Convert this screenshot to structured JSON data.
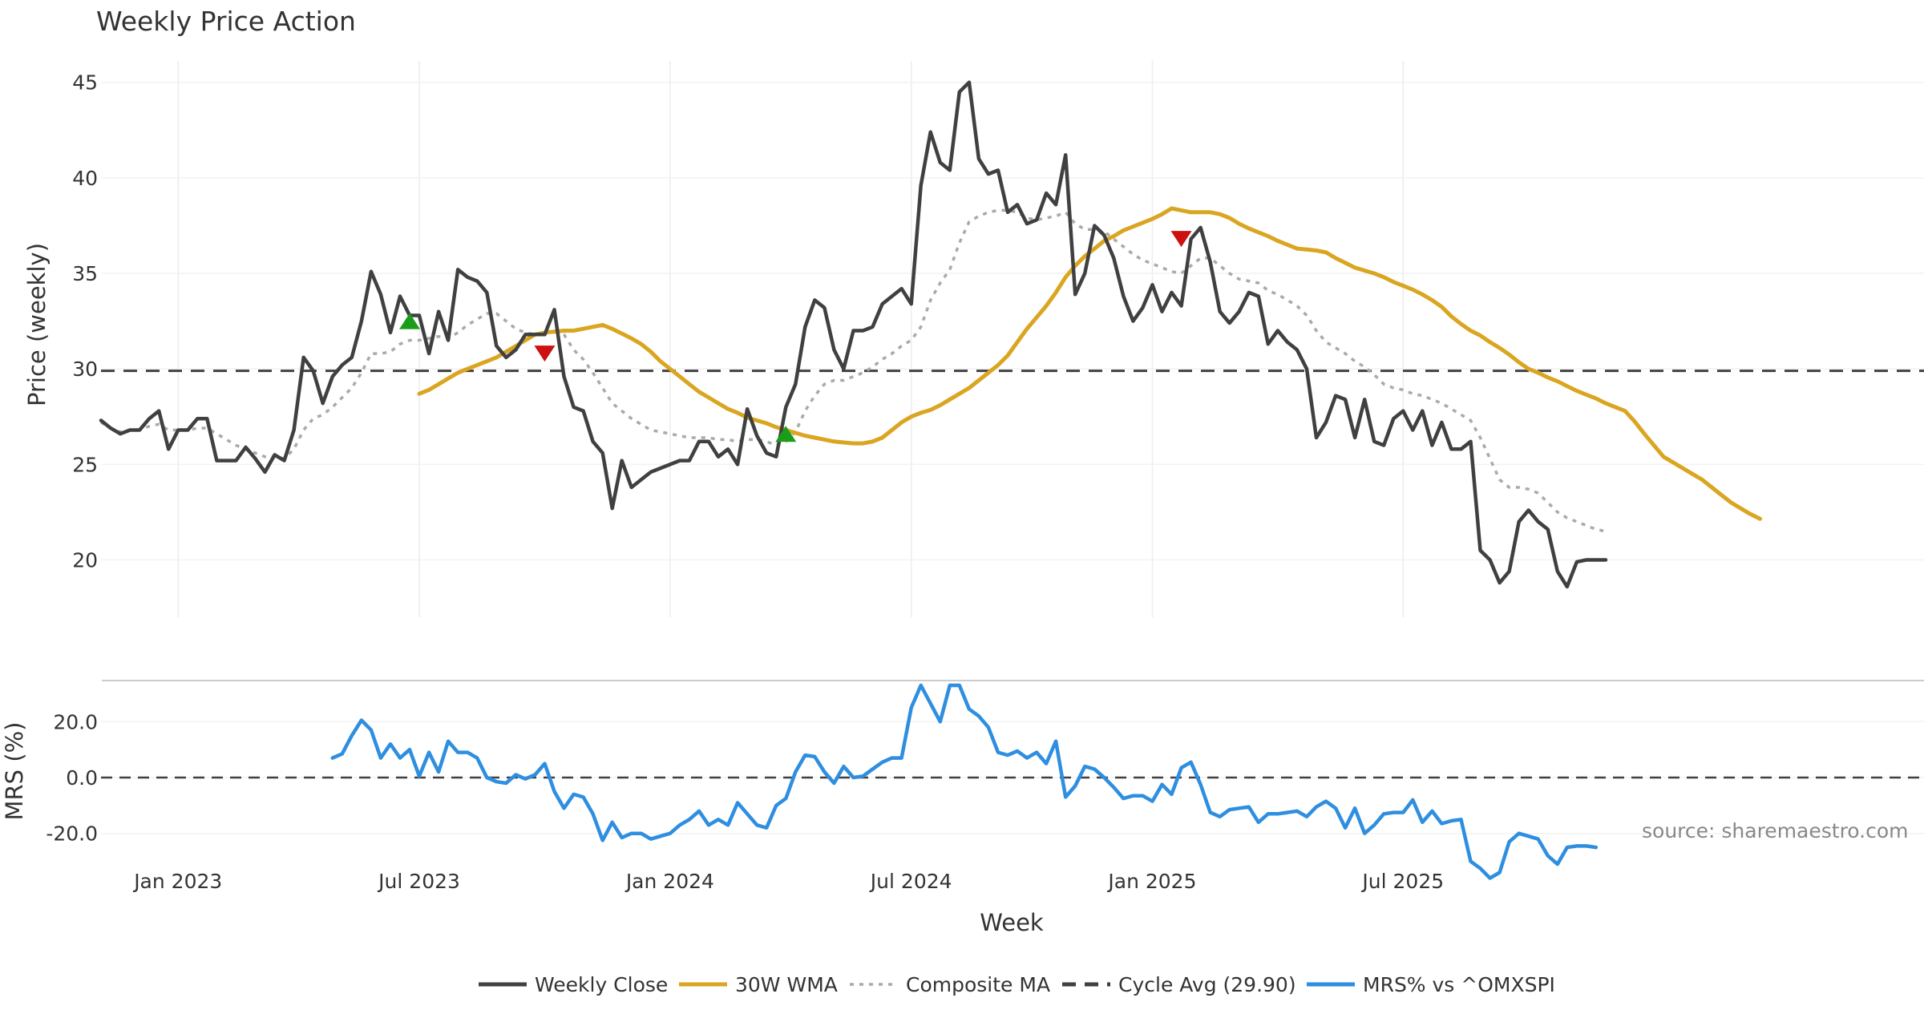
{
  "chart_data": [
    {
      "type": "line",
      "title": "Weekly Price Action",
      "ylabel": "Price (weekly)",
      "ylim": [
        17,
        46.5
      ],
      "yticks": [
        20,
        25,
        30,
        35,
        40,
        45
      ],
      "grid": true,
      "cycle_avg": 29.9,
      "x_week_index_range": [
        0,
        189
      ],
      "series": [
        {
          "name": "Weekly Close",
          "color": "#404040",
          "style": "solid",
          "start": 0,
          "values": [
            27.3,
            26.9,
            26.6,
            26.8,
            26.8,
            27.4,
            27.8,
            25.8,
            26.8,
            26.8,
            27.4,
            27.4,
            25.2,
            25.2,
            25.2,
            25.9,
            25.3,
            24.6,
            25.5,
            25.2,
            26.8,
            30.6,
            29.9,
            28.2,
            29.6,
            30.2,
            30.6,
            32.5,
            35.1,
            33.9,
            31.9,
            33.8,
            32.8,
            32.8,
            30.8,
            33.0,
            31.5,
            35.2,
            34.8,
            34.6,
            34.0,
            31.2,
            30.6,
            31.0,
            31.8,
            31.8,
            31.8,
            33.1,
            29.6,
            28.0,
            27.8,
            26.2,
            25.6,
            22.7,
            25.2,
            23.8,
            24.2,
            24.6,
            24.8,
            25.0,
            25.2,
            25.2,
            26.2,
            26.2,
            25.4,
            25.8,
            25.0,
            27.9,
            26.5,
            25.6,
            25.4,
            28.0,
            29.2,
            32.2,
            33.6,
            33.2,
            31.0,
            30.0,
            32.0,
            32.0,
            32.2,
            33.4,
            33.8,
            34.2,
            33.4,
            39.6,
            42.4,
            40.8,
            40.4,
            44.5,
            45.0,
            41.0,
            40.2,
            40.4,
            38.2,
            38.6,
            37.6,
            37.8,
            39.2,
            38.6,
            41.2,
            33.9,
            35.0,
            37.5,
            37.0,
            35.8,
            33.8,
            32.5,
            33.2,
            34.4,
            33.0,
            34.0,
            33.3,
            36.8,
            37.4,
            35.6,
            33.0,
            32.4,
            33.0,
            34.0,
            33.8,
            31.3,
            32.0,
            31.4,
            31.0,
            30.0,
            26.4,
            27.2,
            28.6,
            28.4,
            26.4,
            28.4,
            26.2,
            26.0,
            27.4,
            27.8,
            26.8,
            27.8,
            26.0,
            27.2,
            25.8,
            25.8,
            26.2,
            20.5,
            20.0,
            18.8,
            19.4,
            22.0,
            22.6,
            22.0,
            21.6,
            19.4,
            18.6,
            19.9,
            20.0,
            20.0,
            20.0
          ]
        },
        {
          "name": "30W WMA",
          "color": "#daa520",
          "style": "solid",
          "start": 33,
          "values": [
            28.7,
            28.9,
            29.2,
            29.5,
            29.8,
            30.0,
            30.2,
            30.4,
            30.6,
            30.9,
            31.2,
            31.5,
            31.8,
            31.9,
            31.95,
            32.0,
            32.0,
            32.1,
            32.2,
            32.3,
            32.1,
            31.85,
            31.6,
            31.3,
            30.9,
            30.4,
            30.0,
            29.6,
            29.2,
            28.8,
            28.5,
            28.2,
            27.9,
            27.7,
            27.45,
            27.3,
            27.15,
            26.95,
            26.8,
            26.65,
            26.5,
            26.4,
            26.3,
            26.2,
            26.15,
            26.1,
            26.1,
            26.2,
            26.4,
            26.8,
            27.2,
            27.5,
            27.7,
            27.85,
            28.1,
            28.4,
            28.7,
            29.0,
            29.4,
            29.8,
            30.2,
            30.7,
            31.4,
            32.1,
            32.7,
            33.3,
            34.0,
            34.8,
            35.4,
            35.9,
            36.3,
            36.7,
            36.95,
            37.25,
            37.45,
            37.65,
            37.85,
            38.1,
            38.4,
            38.3,
            38.2,
            38.2,
            38.2,
            38.1,
            37.9,
            37.6,
            37.35,
            37.15,
            36.95,
            36.7,
            36.5,
            36.3,
            36.25,
            36.2,
            36.1,
            35.8,
            35.55,
            35.3,
            35.15,
            35.0,
            34.8,
            34.55,
            34.35,
            34.15,
            33.9,
            33.6,
            33.25,
            32.75,
            32.35,
            32.0,
            31.75,
            31.4,
            31.1,
            30.75,
            30.35,
            30.0,
            29.8,
            29.55,
            29.35,
            29.1,
            28.85,
            28.65,
            28.45,
            28.2,
            28.0,
            27.8,
            27.25,
            26.6,
            26.0,
            25.4,
            25.1,
            24.8,
            24.5,
            24.2,
            23.8,
            23.4,
            23.0,
            22.7,
            22.4,
            22.15
          ]
        },
        {
          "name": "Composite MA",
          "color": "#aaaaaa",
          "style": "dotted",
          "start": 0,
          "values": [
            27.2,
            26.9,
            26.7,
            26.8,
            26.8,
            27.0,
            27.1,
            26.8,
            26.8,
            26.8,
            26.9,
            26.9,
            26.6,
            26.3,
            26.0,
            25.8,
            25.6,
            25.4,
            25.4,
            25.3,
            25.8,
            26.8,
            27.4,
            27.6,
            28.0,
            28.5,
            29.0,
            29.8,
            30.8,
            30.8,
            30.9,
            31.3,
            31.5,
            31.5,
            31.6,
            31.7,
            31.6,
            31.9,
            32.3,
            32.6,
            32.9,
            32.9,
            32.5,
            32.1,
            31.9,
            31.8,
            31.8,
            32.1,
            31.8,
            31.0,
            30.5,
            29.8,
            29.0,
            28.2,
            27.8,
            27.4,
            27.1,
            26.8,
            26.7,
            26.6,
            26.5,
            26.4,
            26.4,
            26.4,
            26.3,
            26.3,
            26.2,
            26.3,
            26.3,
            26.2,
            26.0,
            26.2,
            26.7,
            27.8,
            28.6,
            29.2,
            29.4,
            29.4,
            29.6,
            29.8,
            30.1,
            30.5,
            30.8,
            31.2,
            31.5,
            32.2,
            33.6,
            34.5,
            35.2,
            36.6,
            37.7,
            38.0,
            38.2,
            38.3,
            38.3,
            38.2,
            37.9,
            37.8,
            37.9,
            38.0,
            38.2,
            37.6,
            37.3,
            37.3,
            37.2,
            36.8,
            36.4,
            36.0,
            35.7,
            35.5,
            35.3,
            35.1,
            35.0,
            35.4,
            35.8,
            35.8,
            35.4,
            35.0,
            34.7,
            34.6,
            34.5,
            34.1,
            33.9,
            33.6,
            33.3,
            32.8,
            32.0,
            31.4,
            31.1,
            30.8,
            30.4,
            30.1,
            29.7,
            29.2,
            29.0,
            28.9,
            28.7,
            28.6,
            28.4,
            28.2,
            27.9,
            27.6,
            27.3,
            26.4,
            25.3,
            24.2,
            23.8,
            23.8,
            23.7,
            23.5,
            23.0,
            22.5,
            22.2,
            22.0,
            21.8,
            21.6,
            21.5
          ]
        }
      ],
      "signals": [
        {
          "type": "buy",
          "week": 32,
          "value": 32.5,
          "color": "#1a9e1a"
        },
        {
          "type": "sell",
          "week": 46,
          "value": 30.8,
          "color": "#cc1111"
        },
        {
          "type": "buy",
          "week": 71,
          "value": 26.6,
          "color": "#1a9e1a"
        },
        {
          "type": "sell",
          "week": 112,
          "value": 36.8,
          "color": "#cc1111"
        }
      ]
    },
    {
      "type": "line",
      "ylabel": "MRS (%)",
      "ylim": [
        -35,
        35
      ],
      "yticks": [
        20,
        0,
        -20
      ],
      "ytick_labels": [
        "20.0",
        "0.0",
        "-20.0"
      ],
      "xlabel": "Week",
      "x_tick_weeks": [
        8,
        33,
        59,
        84,
        109,
        135
      ],
      "x_tick_labels": [
        "Jan 2023",
        "Jul 2023",
        "Jan 2024",
        "Jul 2024",
        "Jan 2025",
        "Jul 2025"
      ],
      "series": [
        {
          "name": "MRS% vs ^OMXSPI",
          "color": "#2e8ee0",
          "style": "solid",
          "start": 24,
          "values": [
            7.0,
            8.5,
            15.0,
            20.5,
            17.0,
            7.0,
            12.0,
            7.0,
            10.0,
            0.5,
            9.0,
            2.0,
            13.0,
            9.0,
            9.0,
            7.0,
            0.0,
            -1.5,
            -2.0,
            1.0,
            -0.5,
            1.0,
            5.0,
            -5.0,
            -11.0,
            -6.0,
            -7.0,
            -13.0,
            -22.5,
            -16.0,
            -21.5,
            -20.0,
            -20.0,
            -22.0,
            -21.0,
            -20.0,
            -17.0,
            -15.0,
            -12.0,
            -17.0,
            -15.0,
            -17.0,
            -9.0,
            -13.0,
            -17.0,
            -18.0,
            -10.0,
            -7.5,
            2.0,
            8.0,
            7.5,
            2.0,
            -2.0,
            4.0,
            0.0,
            0.5,
            3.0,
            5.5,
            7.0,
            7.0,
            25.0,
            33.0,
            26.5,
            20.0,
            33.0,
            33.0,
            24.5,
            22.0,
            18.0,
            9.0,
            8.0,
            9.5,
            7.0,
            9.0,
            5.0,
            13.0,
            -7.0,
            -3.0,
            4.0,
            3.0,
            0.0,
            -3.5,
            -7.5,
            -6.5,
            -6.5,
            -8.5,
            -2.5,
            -6.0,
            3.5,
            5.5,
            -2.5,
            -12.5,
            -14.0,
            -11.5,
            -11.0,
            -10.5,
            -16.0,
            -13.0,
            -13.0,
            -12.5,
            -12.0,
            -14.0,
            -10.5,
            -8.5,
            -11.0,
            -18.0,
            -11.0,
            -20.0,
            -17.0,
            -13.0,
            -12.5,
            -12.5,
            -8.0,
            -16.0,
            -12.0,
            -16.5,
            -15.5,
            -15.0,
            -30.0,
            -32.5,
            -36.0,
            -34.0,
            -23.0,
            -20.0,
            -21.0,
            -22.0,
            -28.0,
            -31.0,
            -25.0,
            -24.5,
            -24.5,
            -25.0
          ]
        }
      ]
    }
  ],
  "legend": {
    "position": "bottom",
    "items": [
      {
        "label": "Weekly Close",
        "color": "#404040",
        "style": "solid"
      },
      {
        "label": "30W WMA",
        "color": "#daa520",
        "style": "solid"
      },
      {
        "label": "Composite MA",
        "color": "#aaaaaa",
        "style": "dotted"
      },
      {
        "label": "Cycle Avg (29.90)",
        "color": "#404040",
        "style": "dashed"
      },
      {
        "label": "MRS% vs ^OMXSPI",
        "color": "#2e8ee0",
        "style": "solid"
      }
    ]
  },
  "annotation": {
    "text": "source: sharemaestro.com",
    "color": "#888888"
  }
}
